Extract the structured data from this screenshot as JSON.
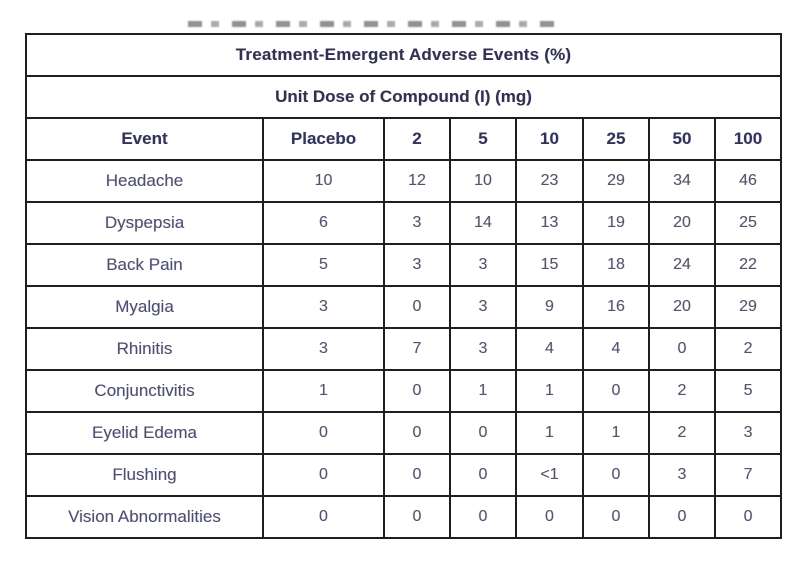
{
  "page": {
    "background": "#ffffff"
  },
  "table": {
    "title": "Treatment-Emergent Adverse Events (%)",
    "subtitle": "Unit Dose of Compound (I) (mg)",
    "columns": [
      "Event",
      "Placebo",
      "2",
      "5",
      "10",
      "25",
      "50",
      "100"
    ],
    "rows": [
      {
        "event": "Headache",
        "values": [
          "10",
          "12",
          "10",
          "23",
          "29",
          "34",
          "46"
        ]
      },
      {
        "event": "Dyspepsia",
        "values": [
          "6",
          "3",
          "14",
          "13",
          "19",
          "20",
          "25"
        ]
      },
      {
        "event": "Back Pain",
        "values": [
          "5",
          "3",
          "3",
          "15",
          "18",
          "24",
          "22"
        ]
      },
      {
        "event": "Myalgia",
        "values": [
          "3",
          "0",
          "3",
          "9",
          "16",
          "20",
          "29"
        ]
      },
      {
        "event": "Rhinitis",
        "values": [
          "3",
          "7",
          "3",
          "4",
          "4",
          "0",
          "2"
        ]
      },
      {
        "event": "Conjunctivitis",
        "values": [
          "1",
          "0",
          "1",
          "1",
          "0",
          "2",
          "5"
        ]
      },
      {
        "event": "Eyelid Edema",
        "values": [
          "0",
          "0",
          "0",
          "1",
          "1",
          "2",
          "3"
        ]
      },
      {
        "event": "Flushing",
        "values": [
          "0",
          "0",
          "0",
          "<1",
          "0",
          "3",
          "7"
        ]
      },
      {
        "event": "Vision Abnormalities",
        "values": [
          "0",
          "0",
          "0",
          "0",
          "0",
          "0",
          "0"
        ]
      }
    ],
    "colors": {
      "border": "#1e1e1e",
      "header_text": "#33335a",
      "data_text": "#545468",
      "background": "#ffffff"
    }
  }
}
